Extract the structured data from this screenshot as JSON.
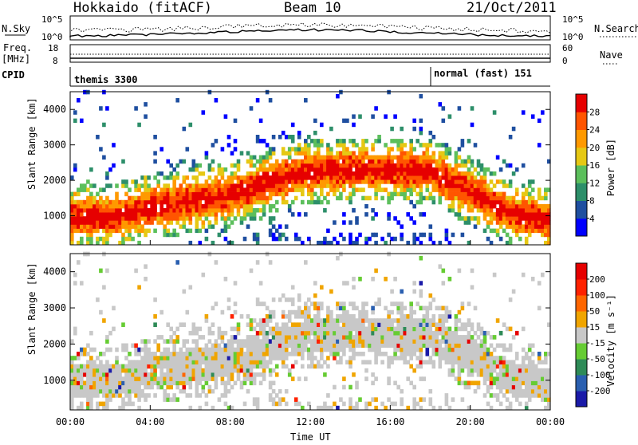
{
  "header": {
    "station": "Hokkaido (fitACF)",
    "beam": "Beam 10",
    "date": "21/Oct/2011"
  },
  "top_panels": {
    "nsky_label": "N.Sky",
    "nsky_ticks": [
      "10^5",
      "10^0"
    ],
    "nsearch_label": "N.Search",
    "nsearch_ticks": [
      "10^5",
      "10^0"
    ],
    "freq_label": "Freq.",
    "freq_unit": "[MHz]",
    "freq_ticks": [
      "18",
      "8"
    ],
    "nave_label": "Nave",
    "nave_ticks": [
      "60",
      "0"
    ],
    "cpid_label": "CPID",
    "cpid_segments": [
      {
        "name": "themis 3300",
        "start_hour": 0,
        "end_hour": 18
      },
      {
        "name": "normal (fast) 151",
        "start_hour": 18,
        "end_hour": 24
      }
    ]
  },
  "axes": {
    "xlabel": "Time UT",
    "xticks": [
      "00:00",
      "04:00",
      "08:00",
      "12:00",
      "16:00",
      "20:00",
      "00:00"
    ],
    "ylabel": "Slant Range [km]",
    "yticks": [
      "1000",
      "2000",
      "3000",
      "4000"
    ]
  },
  "colorbars": {
    "power": {
      "label": "Power [dB]",
      "ticks": [
        "4",
        "8",
        "12",
        "16",
        "20",
        "24",
        "28"
      ],
      "colors": [
        "#0000ff",
        "#1f4fa0",
        "#2d8f6a",
        "#5cbf5c",
        "#e6c814",
        "#ff9900",
        "#ff5500",
        "#e60000"
      ]
    },
    "velocity": {
      "label": "Velocity [m s⁻¹]",
      "ticks": [
        "200",
        "100",
        "50",
        "15",
        "-15",
        "-50",
        "-100",
        "-200"
      ],
      "colors": [
        "#1a1aa8",
        "#2a5fb0",
        "#2e8b57",
        "#66cc33",
        "#c8c8c8",
        "#f0a500",
        "#ff6600",
        "#ff2200",
        "#e60000"
      ]
    }
  },
  "chart_data": [
    {
      "type": "heatmap",
      "title": "Power",
      "xlabel": "Time UT",
      "ylabel": "Slant Range [km]",
      "x_range_hours": [
        0,
        24
      ],
      "ylim": [
        180,
        4500
      ],
      "colorbar": {
        "label": "Power [dB]",
        "range": [
          0,
          32
        ]
      },
      "note": "Main backscatter band: range (km) vs UT hour",
      "band_centers": [
        {
          "hour": 0,
          "range_km": 900
        },
        {
          "hour": 2,
          "range_km": 900
        },
        {
          "hour": 4,
          "range_km": 1200
        },
        {
          "hour": 6,
          "range_km": 1350
        },
        {
          "hour": 8,
          "range_km": 1550
        },
        {
          "hour": 10,
          "range_km": 1900
        },
        {
          "hour": 12,
          "range_km": 2200
        },
        {
          "hour": 14,
          "range_km": 2250
        },
        {
          "hour": 16,
          "range_km": 2250
        },
        {
          "hour": 18,
          "range_km": 2200
        },
        {
          "hour": 20,
          "range_km": 1600
        },
        {
          "hour": 22,
          "range_km": 1000
        },
        {
          "hour": 24,
          "range_km": 800
        }
      ]
    },
    {
      "type": "heatmap",
      "title": "Velocity",
      "xlabel": "Time UT",
      "ylabel": "Slant Range [km]",
      "x_range_hours": [
        0,
        24
      ],
      "ylim": [
        180,
        4500
      ],
      "colorbar": {
        "label": "Velocity [m s⁻¹]",
        "range": [
          -200,
          200
        ]
      }
    }
  ]
}
